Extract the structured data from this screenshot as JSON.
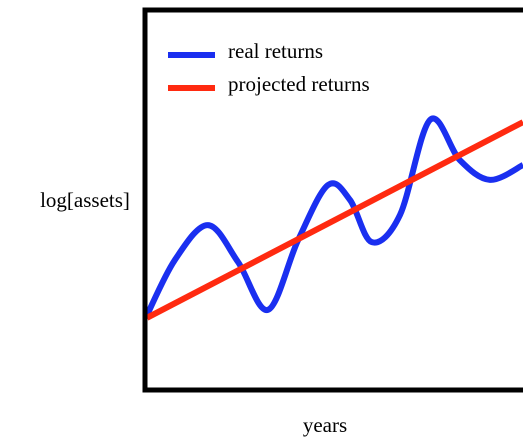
{
  "chart_data": {
    "type": "line",
    "xlabel": "years",
    "ylabel": "log[assets]",
    "xlim": [
      0,
      10
    ],
    "ylim": [
      0,
      10
    ],
    "legend": "upper left",
    "series": [
      {
        "name": "real returns",
        "color": "#1a2ff0",
        "x": [
          0,
          0.74,
          1.62,
          2.42,
          3.22,
          4.02,
          4.81,
          5.4,
          5.98,
          6.73,
          7.53,
          8.32,
          9.12,
          10
        ],
        "values": [
          1.97,
          3.42,
          4.34,
          3.37,
          2.11,
          3.95,
          5.39,
          5.0,
          3.89,
          4.61,
          7.11,
          6.05,
          5.53,
          5.92
        ]
      },
      {
        "name": "projected returns",
        "color": "#ff2a10",
        "x": [
          0,
          10
        ],
        "values": [
          1.9,
          7.05
        ]
      }
    ]
  }
}
